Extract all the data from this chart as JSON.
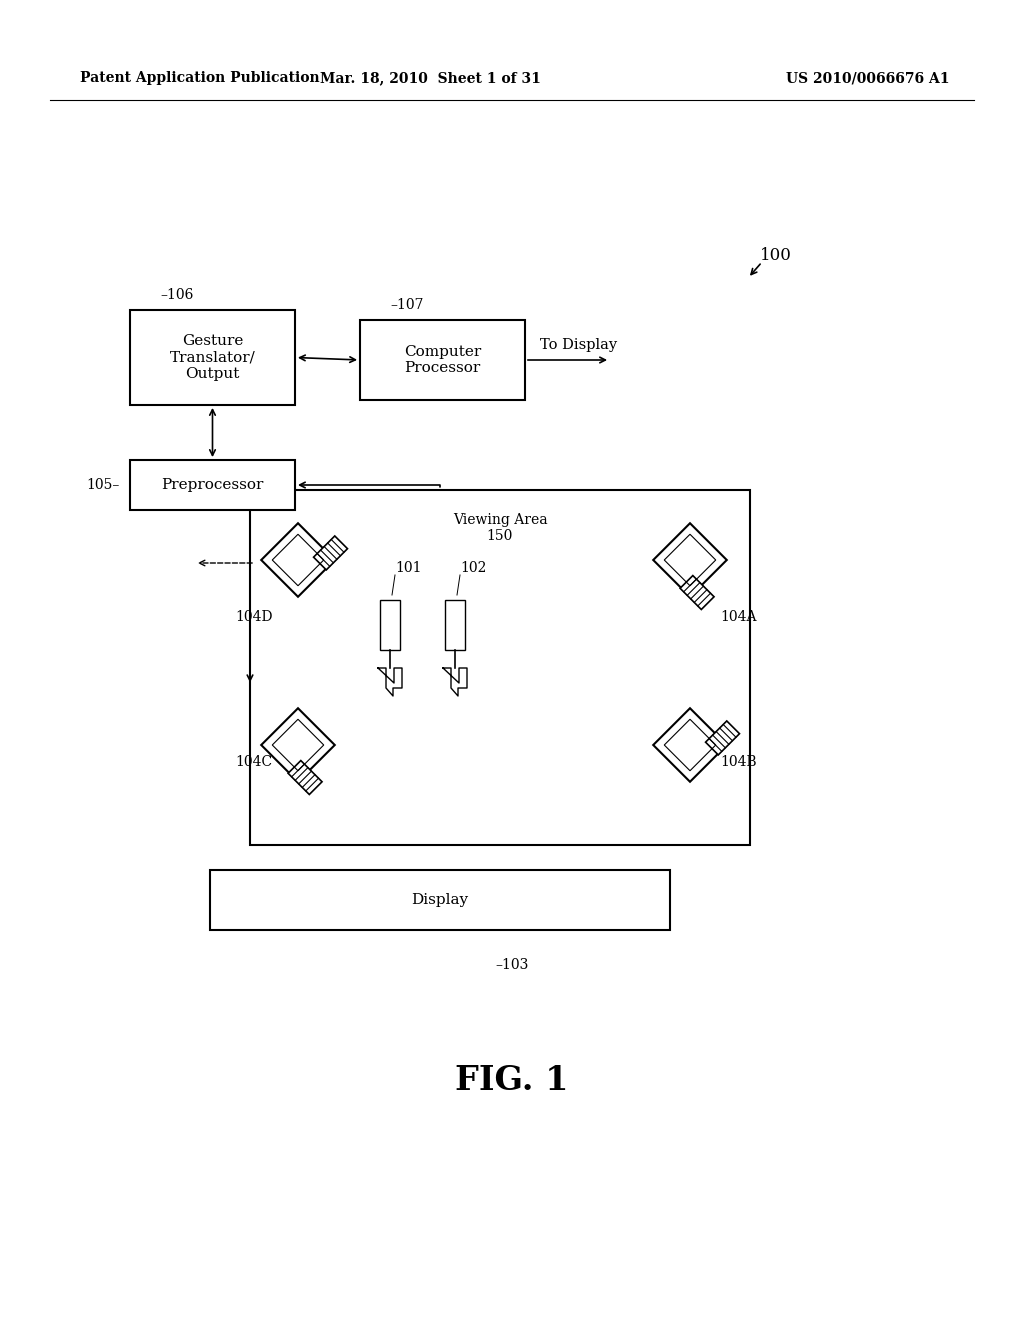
{
  "bg_color": "#ffffff",
  "header_left": "Patent Application Publication",
  "header_mid": "Mar. 18, 2010  Sheet 1 of 31",
  "header_right": "US 2010/0066676 A1",
  "fig_label": "FIG. 1",
  "diagram_label": "100"
}
